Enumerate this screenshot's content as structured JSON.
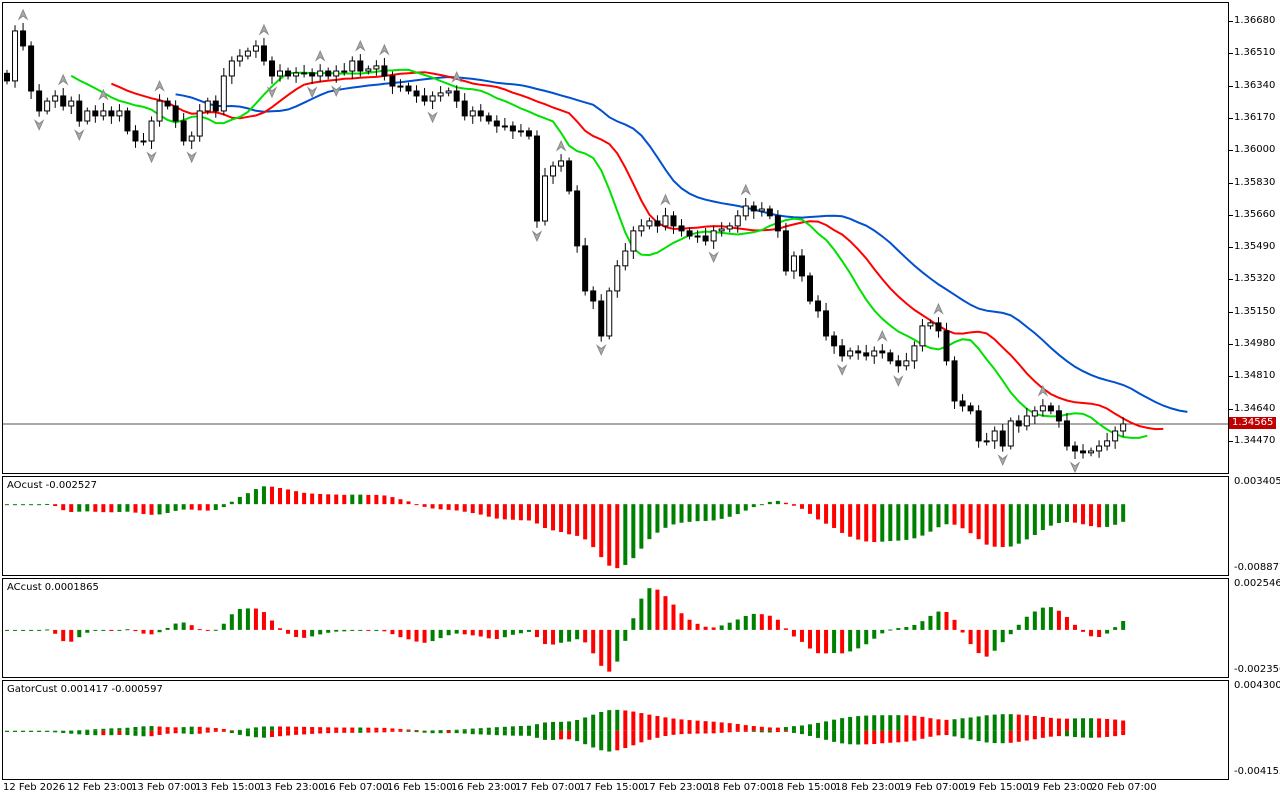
{
  "chart_data": {
    "type": "candlestick",
    "main": {
      "ylim": [
        1.34307,
        1.3678
      ],
      "price_ticks": [
        "1.36680",
        "1.36510",
        "1.36340",
        "1.36170",
        "1.36000",
        "1.35830",
        "1.35660",
        "1.35490",
        "1.35320",
        "1.35150",
        "1.34980",
        "1.34810",
        "1.34640",
        "1.34470"
      ],
      "current_price": "1.34565",
      "closes": [
        1.3637,
        1.36633,
        1.36554,
        1.36317,
        1.36212,
        1.36264,
        1.36291,
        1.36238,
        1.36264,
        1.36159,
        1.36212,
        1.36186,
        1.36212,
        1.36186,
        1.36212,
        1.36107,
        1.36054,
        1.36054,
        1.36159,
        1.36264,
        1.36238,
        1.36159,
        1.36054,
        1.3608,
        1.36212,
        1.36264,
        1.36212,
        1.36396,
        1.36475,
        1.36501,
        1.36527,
        1.36554,
        1.36475,
        1.36396,
        1.36422,
        1.36396,
        1.36412,
        1.36412,
        1.36396,
        1.36422,
        1.36396,
        1.36422,
        1.36422,
        1.36475,
        1.36422,
        1.36433,
        1.36449,
        1.36396,
        1.36343,
        1.36343,
        1.36317,
        1.36291,
        1.36264,
        1.36291,
        1.36307,
        1.36317,
        1.36264,
        1.36186,
        1.36212,
        1.36186,
        1.36159,
        1.36133,
        1.36133,
        1.36107,
        1.36107,
        1.3608,
        1.35633,
        1.3587,
        1.35922,
        1.35949,
        1.35791,
        1.35502,
        1.35265,
        1.35212,
        1.35028,
        1.35265,
        1.35397,
        1.35475,
        1.35581,
        1.35607,
        1.35633,
        1.35607,
        1.3566,
        1.35607,
        1.35581,
        1.35554,
        1.35554,
        1.35528,
        1.35581,
        1.35591,
        1.35607,
        1.3566,
        1.35712,
        1.35686,
        1.35696,
        1.3566,
        1.35581,
        1.3537,
        1.35449,
        1.35344,
        1.35212,
        1.3516,
        1.35028,
        1.34976,
        1.34923,
        1.34949,
        1.34939,
        1.34923,
        1.34949,
        1.34939,
        1.34897,
        1.34871,
        1.34897,
        1.34976,
        1.35081,
        1.35097,
        1.35055,
        1.34897,
        1.34686,
        1.3466,
        1.34634,
        1.34476,
        1.34476,
        1.34528,
        1.34449,
        1.34581,
        1.34555,
        1.34607,
        1.34634,
        1.3466,
        1.34634,
        1.34581,
        1.34449,
        1.34423,
        1.34413,
        1.34423,
        1.34449,
        1.34476,
        1.34528,
        1.34565
      ],
      "wick": 0.0003,
      "alligator_colors": {
        "jaw": "#0050d0",
        "teeth": "#ff0000",
        "lips": "#00e000"
      }
    },
    "indicators": [
      {
        "label": "AOcust -0.002527",
        "ylim": [
          -0.008877,
          0.003405
        ],
        "top": "0.003405",
        "bottom": "-0.008877"
      },
      {
        "label": "ACcust 0.0001865",
        "ylim": [
          -0.0023561,
          0.0025465
        ],
        "top": "0.0025465",
        "bottom": "-0.0023561"
      },
      {
        "label": "GatorCust 0.001417 -0.000597",
        "ylim": [
          -0.004155,
          0.0043
        ],
        "top": "0.004300",
        "bottom": "-0.004155"
      }
    ],
    "time_labels": [
      "12 Feb 2026",
      "12 Feb 23:00",
      "13 Feb 07:00",
      "13 Feb 15:00",
      "13 Feb 23:00",
      "16 Feb 07:00",
      "16 Feb 15:00",
      "16 Feb 23:00",
      "17 Feb 07:00",
      "17 Feb 15:00",
      "17 Feb 23:00",
      "18 Feb 07:00",
      "18 Feb 15:00",
      "18 Feb 23:00",
      "19 Feb 07:00",
      "19 Feb 15:00",
      "19 Feb 23:00",
      "20 Feb 07:00"
    ],
    "colors": {
      "up": "#008000",
      "down": "#ff0000",
      "price_tag": "#c00000"
    }
  }
}
